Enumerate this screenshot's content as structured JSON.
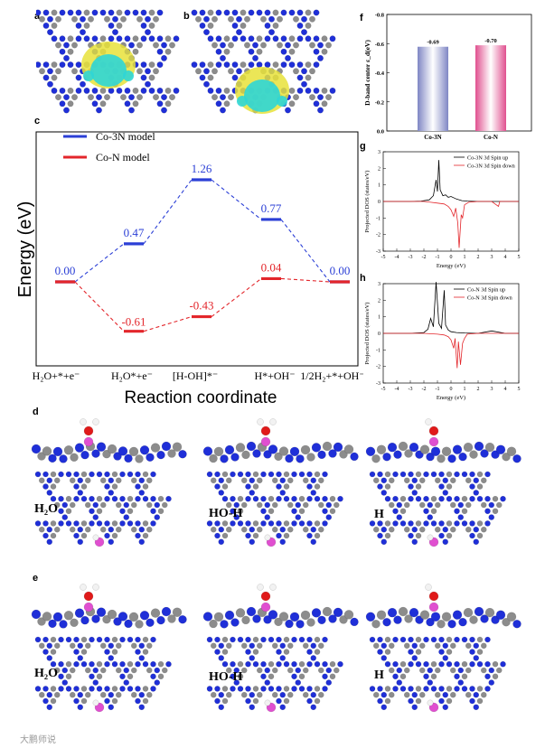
{
  "panels": {
    "a": "a",
    "b": "b",
    "c": "c",
    "d": "d",
    "e": "e",
    "f": "f",
    "g": "g",
    "h": "h"
  },
  "colors": {
    "co3n": "#2b3fd6",
    "con": "#e3262b",
    "atom_n": "#1f2fd8",
    "atom_c": "#8c8c8c",
    "atom_o": "#e01a1a",
    "atom_h": "#f2f2f2",
    "atom_co": "#e04fd0",
    "density_yellow": "#e8e23a",
    "density_cyan": "#2fd6d6",
    "bar_co3n": "#7f86c4",
    "bar_con": "#e0508f"
  },
  "chart_data": [
    {
      "id": "c",
      "type": "line",
      "title": "",
      "xlabel": "Reaction coordinate",
      "ylabel": "Energy (eV)",
      "categories": [
        "H₂O+*+e⁻",
        "H₂O*+e⁻",
        "[H-OH]*⁻",
        "H*+OH⁻",
        "1/2H₂+*+OH⁻"
      ],
      "series": [
        {
          "name": "Co-3N model",
          "values": [
            0.0,
            0.47,
            1.26,
            0.77,
            0.0
          ],
          "labels": [
            "0.00",
            "0.47",
            "1.26",
            "0.77",
            "0.00"
          ]
        },
        {
          "name": "Co-N   model",
          "values": [
            0.0,
            -0.61,
            -0.43,
            0.04,
            0.0
          ],
          "labels": [
            "",
            "-0.61",
            "-0.43",
            "0.04",
            ""
          ]
        }
      ],
      "ylim": [
        -0.9,
        1.55
      ],
      "legend": "top-left"
    },
    {
      "id": "f",
      "type": "bar",
      "title": "",
      "xlabel": "",
      "ylabel": "D-band center ε_d(eV)",
      "categories": [
        "Co-3N",
        "Co-N"
      ],
      "values": [
        -0.69,
        -0.7
      ],
      "labels": [
        "-0.69",
        "-0.70"
      ],
      "yticks": [
        "-0.8",
        "-0.6",
        "-0.4",
        "-0.2",
        "0.0"
      ],
      "ylim": [
        -0.8,
        0.0
      ]
    },
    {
      "id": "g",
      "type": "line",
      "title": "",
      "xlabel": "Energy (eV)",
      "ylabel": "Projected DOS (states/eV)",
      "xlim": [
        -5,
        5
      ],
      "ylim": [
        -3,
        3
      ],
      "xticks": [
        "-5",
        "-4",
        "-3",
        "-2",
        "-1",
        "0",
        "1",
        "2",
        "3",
        "4",
        "5"
      ],
      "yticks": [
        "3",
        "2",
        "1",
        "0",
        "-1",
        "-2",
        "-3"
      ],
      "legend": "top-right",
      "series": [
        {
          "name": "Co-3N 3d Spin up",
          "x": [
            -5,
            -4,
            -3,
            -2.2,
            -1.6,
            -1.3,
            -1.1,
            -1.0,
            -0.9,
            -0.8,
            -0.6,
            -0.4,
            -0.2,
            0,
            0.4,
            0.8,
            1.2,
            2,
            3,
            4,
            5
          ],
          "values": [
            0,
            0,
            0,
            0.02,
            0.1,
            0.35,
            1.3,
            0.6,
            2.5,
            0.7,
            0.35,
            0.4,
            0.25,
            0.3,
            0.15,
            0.05,
            0.02,
            0,
            0,
            0,
            0
          ]
        },
        {
          "name": "Co-3N 3d Spin down",
          "x": [
            -5,
            -4,
            -3,
            -2,
            -1.5,
            -1,
            -0.5,
            -0.2,
            0,
            0.2,
            0.35,
            0.5,
            0.6,
            0.75,
            0.85,
            1.0,
            1.3,
            2,
            3,
            3.5,
            3.6,
            4,
            5
          ],
          "values": [
            0,
            0,
            0,
            0,
            -0.05,
            -0.1,
            -0.15,
            -0.3,
            -0.5,
            -0.9,
            -0.4,
            -1.3,
            -2.8,
            -0.8,
            -1.0,
            -0.2,
            -0.05,
            0,
            0,
            -0.3,
            0,
            0,
            0
          ]
        }
      ]
    },
    {
      "id": "h",
      "type": "line",
      "title": "",
      "xlabel": "Energy (eV)",
      "ylabel": "Projected DOS (states/eV)",
      "xlim": [
        -5,
        5
      ],
      "ylim": [
        -3,
        3
      ],
      "xticks": [
        "-5",
        "-4",
        "-3",
        "-2",
        "-1",
        "0",
        "1",
        "2",
        "3",
        "4",
        "5"
      ],
      "yticks": [
        "3",
        "2",
        "1",
        "0",
        "-1",
        "-2",
        "-3"
      ],
      "legend": "top-right",
      "series": [
        {
          "name": "Co-N 3d Spin up",
          "x": [
            -5,
            -4,
            -3,
            -2,
            -1.7,
            -1.5,
            -1.3,
            -1.1,
            -0.9,
            -0.7,
            -0.5,
            -0.4,
            -0.2,
            0,
            0.4,
            1,
            2,
            3,
            4,
            5
          ],
          "values": [
            0,
            0,
            0,
            0.05,
            0.25,
            0.9,
            0.4,
            3.1,
            0.6,
            0.3,
            2.6,
            0.5,
            0.2,
            0.1,
            0.05,
            0.02,
            0,
            0.15,
            0,
            0
          ]
        },
        {
          "name": "Co-N 3d Spin down",
          "x": [
            -5,
            -4,
            -3,
            -2,
            -1,
            -0.5,
            -0.2,
            0,
            0.2,
            0.3,
            0.45,
            0.55,
            0.7,
            0.85,
            1.0,
            1.2,
            2,
            3,
            4,
            5
          ],
          "values": [
            0,
            0,
            0,
            0,
            -0.05,
            -0.1,
            -0.2,
            -0.4,
            -0.9,
            -0.3,
            -2.1,
            -0.5,
            -1.9,
            -0.6,
            -0.3,
            -0.05,
            0,
            0,
            0,
            0
          ]
        }
      ]
    }
  ],
  "structures": {
    "d_labels": [
      "H₂O",
      "HO-H",
      "H"
    ],
    "e_labels": [
      "H₂O",
      "HO-H",
      "H"
    ]
  },
  "watermark": "大鹏师说"
}
